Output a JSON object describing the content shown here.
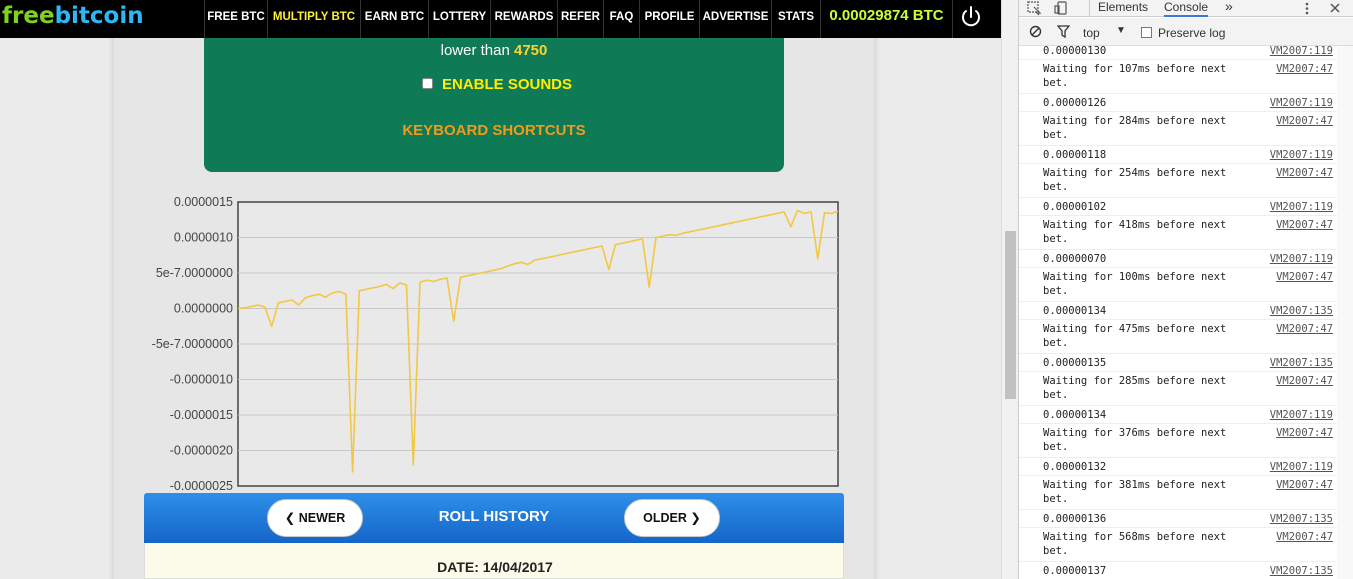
{
  "site": {
    "logo": {
      "part1": "free",
      "part2": "bitcoin"
    },
    "nav": [
      {
        "label": "FREE BTC",
        "active": false
      },
      {
        "label": "MULTIPLY BTC",
        "active": true
      },
      {
        "label": "EARN BTC",
        "active": false
      },
      {
        "label": "LOTTERY",
        "active": false
      },
      {
        "label": "REWARDS",
        "active": false
      },
      {
        "label": "REFER",
        "active": false
      },
      {
        "label": "FAQ",
        "active": false
      },
      {
        "label": "PROFILE",
        "active": false
      },
      {
        "label": "ADVERTISE",
        "active": false
      },
      {
        "label": "STATS",
        "active": false
      }
    ],
    "balance": "0.00029874 BTC",
    "power_icon": "power-icon",
    "bet_panel": {
      "lower_than_text": "lower than",
      "lower_than_value": "4750",
      "enable_sounds": "ENABLE SOUNDS",
      "keyboard_shortcuts": "KEYBOARD SHORTCUTS"
    },
    "roll_history": {
      "newer": "NEWER",
      "older": "OLDER",
      "title": "ROLL HISTORY",
      "date": "DATE: 14/04/2017"
    },
    "colors": {
      "nav_bg": "#000000",
      "panel_green": "#0e7a56",
      "line_color": "#f2c744",
      "roll_bar_blue": "#1e7ad8"
    }
  },
  "chart_data": {
    "type": "line",
    "title": "",
    "xlabel": "",
    "ylabel": "",
    "y_tick_labels": [
      "0.0000015",
      "0.0000010",
      "5e-7.0000000",
      "0.0000000",
      "-5e-7.0000000",
      "-0.0000010",
      "-0.0000015",
      "-0.0000020",
      "-0.0000025"
    ],
    "ylim": [
      -2.5e-06,
      1.5e-06
    ],
    "grid": true,
    "series": [
      {
        "color": "#f2c744",
        "values": [
          0.0,
          1e-08,
          3e-08,
          5e-08,
          2e-08,
          -2.5e-07,
          8e-08,
          1e-07,
          1.2e-07,
          5e-08,
          1.5e-07,
          1.8e-07,
          2e-07,
          1.6e-07,
          2.2e-07,
          2.4e-07,
          2e-07,
          -2.3e-06,
          2.5e-07,
          2.7e-07,
          2.9e-07,
          3.1e-07,
          3.4e-07,
          2.8e-07,
          3.6e-07,
          3.3e-07,
          -2.2e-06,
          3.7e-07,
          4e-07,
          3.8e-07,
          4.1e-07,
          4.3e-07,
          -1.8e-07,
          4.4e-07,
          4.6e-07,
          4.8e-07,
          5e-07,
          5.2e-07,
          5.4e-07,
          5.6e-07,
          6e-07,
          6.3e-07,
          6.5e-07,
          6.2e-07,
          6.8e-07,
          7e-07,
          7.2e-07,
          7.4e-07,
          7.6e-07,
          7.8e-07,
          8e-07,
          8.2e-07,
          8.4e-07,
          8.6e-07,
          8.8e-07,
          5.5e-07,
          9e-07,
          9.2e-07,
          9.4e-07,
          9.6e-07,
          9.8e-07,
          3e-07,
          1e-06,
          1.02e-06,
          1.04e-06,
          1.03e-06,
          1.06e-06,
          1.08e-06,
          1.1e-06,
          1.12e-06,
          1.14e-06,
          1.16e-06,
          1.18e-06,
          1.2e-06,
          1.22e-06,
          1.24e-06,
          1.26e-06,
          1.28e-06,
          1.3e-06,
          1.32e-06,
          1.34e-06,
          1.36e-06,
          1.15e-06,
          1.38e-06,
          1.34e-06,
          1.36e-06,
          7e-07,
          1.35e-06,
          1.34e-06,
          1.37e-06
        ]
      }
    ]
  },
  "devtools": {
    "tabs": [
      "Elements",
      "Console"
    ],
    "active_tab": "Console",
    "more_tabs": "»",
    "menu_icon": "kebab-menu-icon",
    "close_icon": "close-icon",
    "context": "top",
    "preserve_log": "Preserve log",
    "log": [
      {
        "msg": "0.00000130",
        "src": "VM2007:119",
        "partial": true
      },
      {
        "msg": "Waiting for 107ms before next\nbet.",
        "src": "VM2007:47"
      },
      {
        "msg": "0.00000126",
        "src": "VM2007:119"
      },
      {
        "msg": "Waiting for 284ms before next\nbet.",
        "src": "VM2007:47"
      },
      {
        "msg": "0.00000118",
        "src": "VM2007:119"
      },
      {
        "msg": "Waiting for 254ms before next\nbet.",
        "src": "VM2007:47"
      },
      {
        "msg": "0.00000102",
        "src": "VM2007:119"
      },
      {
        "msg": "Waiting for 418ms before next\nbet.",
        "src": "VM2007:47"
      },
      {
        "msg": "0.00000070",
        "src": "VM2007:119"
      },
      {
        "msg": "Waiting for 100ms before next\nbet.",
        "src": "VM2007:47"
      },
      {
        "msg": "0.00000134",
        "src": "VM2007:135"
      },
      {
        "msg": "Waiting for 475ms before next\nbet.",
        "src": "VM2007:47"
      },
      {
        "msg": "0.00000135",
        "src": "VM2007:135"
      },
      {
        "msg": "Waiting for 285ms before next\nbet.",
        "src": "VM2007:47"
      },
      {
        "msg": "0.00000134",
        "src": "VM2007:119"
      },
      {
        "msg": "Waiting for 376ms before next\nbet.",
        "src": "VM2007:47"
      },
      {
        "msg": "0.00000132",
        "src": "VM2007:119"
      },
      {
        "msg": "Waiting for 381ms before next\nbet.",
        "src": "VM2007:47"
      },
      {
        "msg": "0.00000136",
        "src": "VM2007:135"
      },
      {
        "msg": "Waiting for 568ms before next\nbet.",
        "src": "VM2007:47"
      },
      {
        "msg": "0.00000137",
        "src": "VM2007:135"
      }
    ]
  }
}
